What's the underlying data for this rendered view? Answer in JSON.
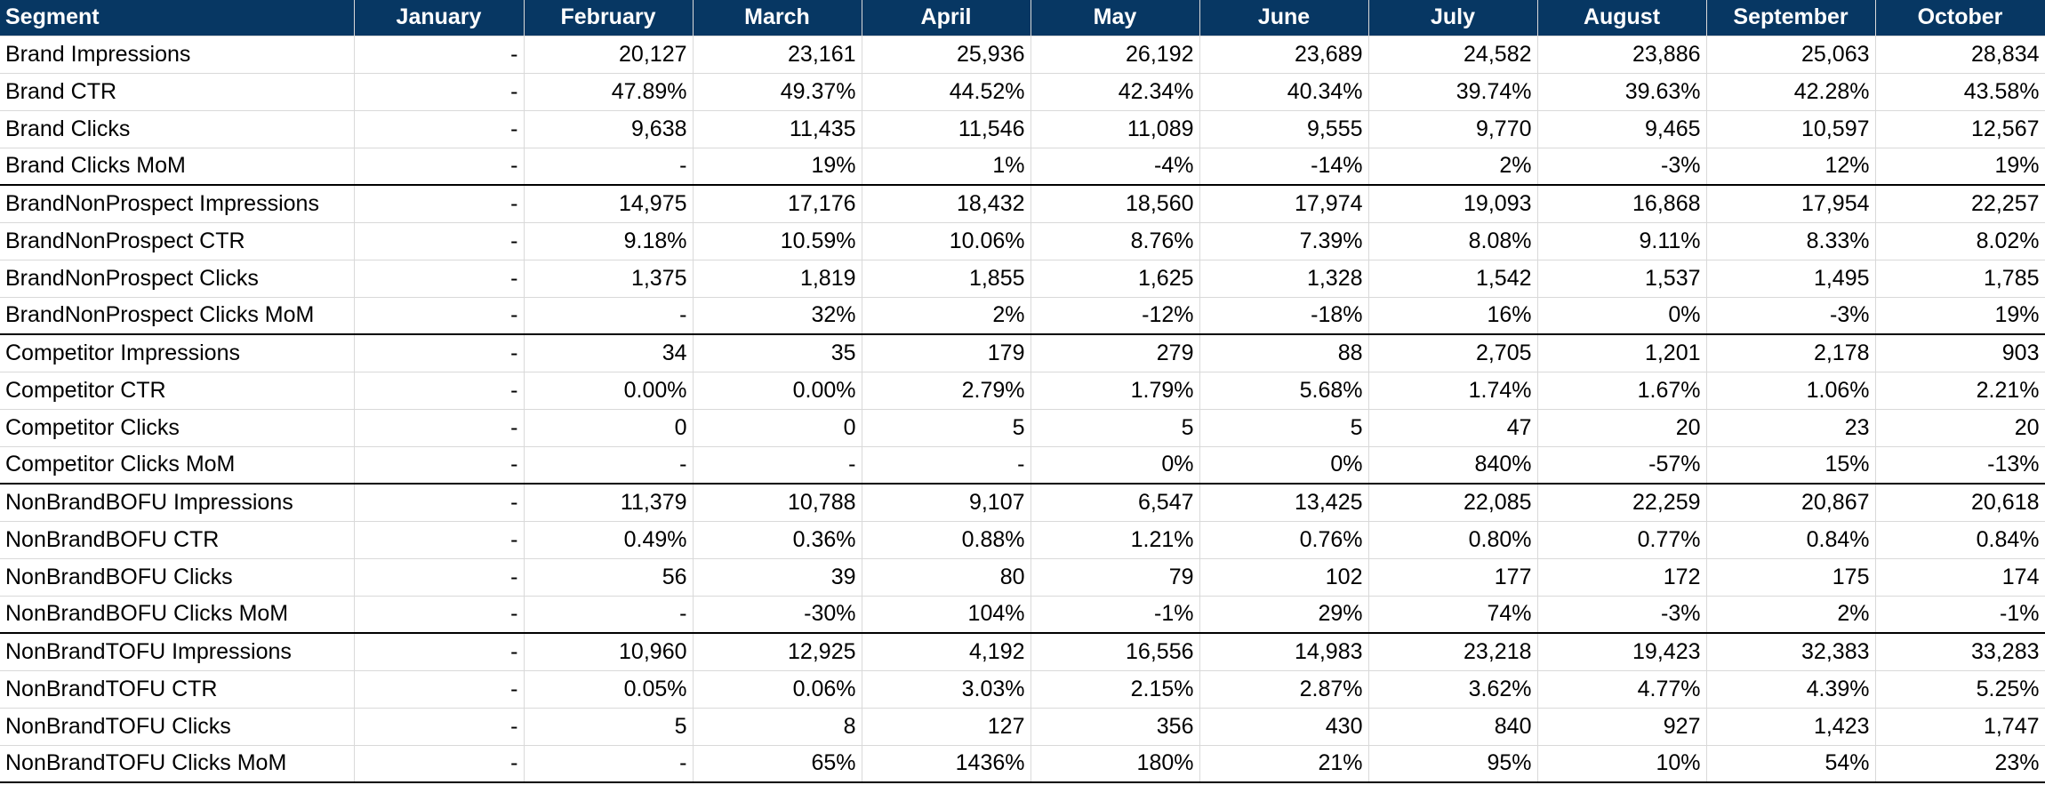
{
  "sheet": {
    "headers": [
      "Segment",
      "January",
      "February",
      "March",
      "April",
      "May",
      "June",
      "July",
      "August",
      "September",
      "October"
    ],
    "colors": {
      "header_bg": "#073763",
      "header_text": "#ffffff",
      "positive": "#00b000",
      "negative": "#e00000"
    },
    "rows": [
      {
        "label": "Brand Impressions",
        "cells": [
          "-",
          "20,127",
          "23,161",
          "25,936",
          "26,192",
          "23,689",
          "24,582",
          "23,886",
          "25,063",
          "28,834"
        ]
      },
      {
        "label": "Brand CTR",
        "cells": [
          "-",
          "47.89%",
          "49.37%",
          "44.52%",
          "42.34%",
          "40.34%",
          "39.74%",
          "39.63%",
          "42.28%",
          "43.58%"
        ]
      },
      {
        "label": "Brand Clicks",
        "cells": [
          "-",
          "9,638",
          "11,435",
          "11,546",
          "11,089",
          "9,555",
          "9,770",
          "9,465",
          "10,597",
          "12,567"
        ]
      },
      {
        "label": "Brand Clicks MoM",
        "cells": [
          "-",
          "-",
          "19%",
          "1%",
          "-4%",
          "-14%",
          "2%",
          "-3%",
          "12%",
          "19%"
        ]
      },
      {
        "label": "BrandNonProspect Impressions",
        "cells": [
          "-",
          "14,975",
          "17,176",
          "18,432",
          "18,560",
          "17,974",
          "19,093",
          "16,868",
          "17,954",
          "22,257"
        ]
      },
      {
        "label": "BrandNonProspect CTR",
        "cells": [
          "-",
          "9.18%",
          "10.59%",
          "10.06%",
          "8.76%",
          "7.39%",
          "8.08%",
          "9.11%",
          "8.33%",
          "8.02%"
        ]
      },
      {
        "label": "BrandNonProspect Clicks",
        "cells": [
          "-",
          "1,375",
          "1,819",
          "1,855",
          "1,625",
          "1,328",
          "1,542",
          "1,537",
          "1,495",
          "1,785"
        ]
      },
      {
        "label": "BrandNonProspect Clicks MoM",
        "cells": [
          "-",
          "-",
          "32%",
          "2%",
          "-12%",
          "-18%",
          "16%",
          "0%",
          "-3%",
          "19%"
        ]
      },
      {
        "label": "Competitor Impressions",
        "cells": [
          "-",
          "34",
          "35",
          "179",
          "279",
          "88",
          "2,705",
          "1,201",
          "2,178",
          "903"
        ]
      },
      {
        "label": "Competitor CTR",
        "cells": [
          "-",
          "0.00%",
          "0.00%",
          "2.79%",
          "1.79%",
          "5.68%",
          "1.74%",
          "1.67%",
          "1.06%",
          "2.21%"
        ]
      },
      {
        "label": "Competitor Clicks",
        "cells": [
          "-",
          "0",
          "0",
          "5",
          "5",
          "5",
          "47",
          "20",
          "23",
          "20"
        ]
      },
      {
        "label": "Competitor Clicks MoM",
        "cells": [
          "-",
          "-",
          "-",
          "-",
          "0%",
          "0%",
          "840%",
          "-57%",
          "15%",
          "-13%"
        ]
      },
      {
        "label": "NonBrandBOFU Impressions",
        "cells": [
          "-",
          "11,379",
          "10,788",
          "9,107",
          "6,547",
          "13,425",
          "22,085",
          "22,259",
          "20,867",
          "20,618"
        ]
      },
      {
        "label": "NonBrandBOFU CTR",
        "cells": [
          "-",
          "0.49%",
          "0.36%",
          "0.88%",
          "1.21%",
          "0.76%",
          "0.80%",
          "0.77%",
          "0.84%",
          "0.84%"
        ]
      },
      {
        "label": "NonBrandBOFU Clicks",
        "cells": [
          "-",
          "56",
          "39",
          "80",
          "79",
          "102",
          "177",
          "172",
          "175",
          "174"
        ]
      },
      {
        "label": "NonBrandBOFU Clicks MoM",
        "cells": [
          "-",
          "-",
          "-30%",
          "104%",
          "-1%",
          "29%",
          "74%",
          "-3%",
          "2%",
          "-1%"
        ]
      },
      {
        "label": "NonBrandTOFU Impressions",
        "cells": [
          "-",
          "10,960",
          "12,925",
          "4,192",
          "16,556",
          "14,983",
          "23,218",
          "19,423",
          "32,383",
          "33,283"
        ]
      },
      {
        "label": "NonBrandTOFU CTR",
        "cells": [
          "-",
          "0.05%",
          "0.06%",
          "3.03%",
          "2.15%",
          "2.87%",
          "3.62%",
          "4.77%",
          "4.39%",
          "5.25%"
        ]
      },
      {
        "label": "NonBrandTOFU Clicks",
        "cells": [
          "-",
          "5",
          "8",
          "127",
          "356",
          "430",
          "840",
          "927",
          "1,423",
          "1,747"
        ]
      },
      {
        "label": "NonBrandTOFU Clicks MoM",
        "cells": [
          "-",
          "-",
          "65%",
          "1436%",
          "180%",
          "21%",
          "95%",
          "10%",
          "54%",
          "23%"
        ]
      }
    ]
  }
}
